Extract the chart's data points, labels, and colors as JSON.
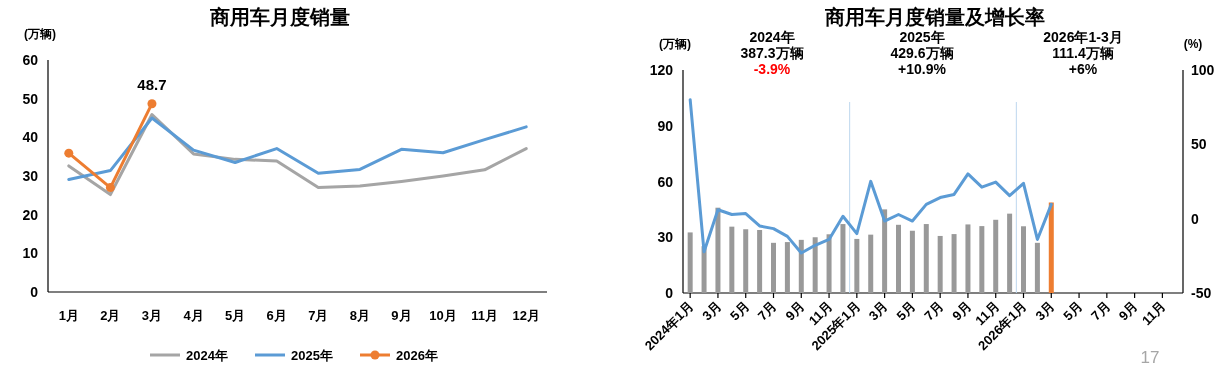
{
  "chart_data": [
    {
      "type": "line",
      "title": "商用车月度销量",
      "ylabel": "(万辆)",
      "categories": [
        "1月",
        "2月",
        "3月",
        "4月",
        "5月",
        "6月",
        "7月",
        "8月",
        "9月",
        "10月",
        "11月",
        "12月"
      ],
      "ylim": [
        0,
        60
      ],
      "yticks": [
        0,
        10,
        20,
        30,
        40,
        50,
        60
      ],
      "grid": false,
      "legend": "bottom",
      "series": [
        {
          "name": "2024年",
          "color": "#a5a5a5",
          "values": [
            32.6,
            25.2,
            45.9,
            35.7,
            34.3,
            33.9,
            27.0,
            27.4,
            28.6,
            30.0,
            31.6,
            37.1
          ]
        },
        {
          "name": "2025年",
          "color": "#5b9bd5",
          "values": [
            29.1,
            31.4,
            45.0,
            36.7,
            33.5,
            37.1,
            30.7,
            31.7,
            36.9,
            36.0,
            39.4,
            42.7
          ]
        },
        {
          "name": "2026年",
          "color": "#ed7d31",
          "marker": "circle",
          "values": [
            35.9,
            27.0,
            48.7,
            null,
            null,
            null,
            null,
            null,
            null,
            null,
            null,
            null
          ],
          "value_labels": [
            null,
            null,
            "48.7",
            null,
            null,
            null,
            null,
            null,
            null,
            null,
            null,
            null
          ]
        }
      ]
    },
    {
      "type": "bar",
      "title": "商用车月度销量及增长率",
      "ylabel": "(万辆)",
      "y2label": "(%)",
      "x": [
        "2024-01",
        "2024-02",
        "2024-03",
        "2024-04",
        "2024-05",
        "2024-06",
        "2024-07",
        "2024-08",
        "2024-09",
        "2024-10",
        "2024-11",
        "2024-12",
        "2025-01",
        "2025-02",
        "2025-03",
        "2025-04",
        "2025-05",
        "2025-06",
        "2025-07",
        "2025-08",
        "2025-09",
        "2025-10",
        "2025-11",
        "2025-12",
        "2026-01",
        "2026-02",
        "2026-03"
      ],
      "xlim": [
        "2023-12-16",
        "2026-12-16"
      ],
      "xticks": [
        {
          "value": "2024-01",
          "label": "2024年1月"
        },
        {
          "value": "2024-03",
          "label": "3月"
        },
        {
          "value": "2024-05",
          "label": "5月"
        },
        {
          "value": "2024-07",
          "label": "7月"
        },
        {
          "value": "2024-09",
          "label": "9月"
        },
        {
          "value": "2024-11",
          "label": "11月"
        },
        {
          "value": "2025-01",
          "label": "2025年1月"
        },
        {
          "value": "2025-03",
          "label": "3月"
        },
        {
          "value": "2025-05",
          "label": "5月"
        },
        {
          "value": "2025-07",
          "label": "7月"
        },
        {
          "value": "2025-09",
          "label": "9月"
        },
        {
          "value": "2025-11",
          "label": "11月"
        },
        {
          "value": "2026-01",
          "label": "2026年1月"
        },
        {
          "value": "2026-03",
          "label": "3月"
        },
        {
          "value": "2026-05",
          "label": "5月"
        },
        {
          "value": "2026-07",
          "label": "7月"
        },
        {
          "value": "2026-09",
          "label": "9月"
        },
        {
          "value": "2026-11",
          "label": "11月"
        }
      ],
      "ylim": [
        0,
        120
      ],
      "yticks": [
        0,
        30,
        60,
        90,
        120
      ],
      "y2lim": [
        -50,
        100
      ],
      "y2ticks": [
        -50,
        0,
        50,
        100
      ],
      "grid": false,
      "legend": false,
      "series": [
        {
          "colors": [
            "#999999",
            "#999999",
            "#999999",
            "#999999",
            "#999999",
            "#999999",
            "#999999",
            "#999999",
            "#999999",
            "#999999",
            "#999999",
            "#999999",
            "#999999",
            "#999999",
            "#999999",
            "#999999",
            "#999999",
            "#999999",
            "#999999",
            "#999999",
            "#999999",
            "#999999",
            "#999999",
            "#999999",
            "#999999",
            "#999999",
            "#ed7d31"
          ],
          "values": [
            32.6,
            25.2,
            45.9,
            35.7,
            34.3,
            33.9,
            27.0,
            27.4,
            28.6,
            30.0,
            31.6,
            37.1,
            29.1,
            31.4,
            45.0,
            36.7,
            33.5,
            37.1,
            30.7,
            31.7,
            36.9,
            36.0,
            39.4,
            42.7,
            35.9,
            27.0,
            48.7
          ]
        },
        {
          "type": "line",
          "axis": "y2",
          "color": "#5b9bd5",
          "values": [
            80,
            -22.3,
            6.0,
            2.8,
            3.4,
            -4.9,
            -6.7,
            -11.9,
            -23.1,
            -17.9,
            -14,
            1.6,
            -10.1,
            25.1,
            -1.6,
            2.8,
            -1.6,
            9.6,
            14.2,
            16.3,
            30.1,
            21.2,
            24.6,
            15.5,
            23.8,
            -14,
            9.6
          ]
        }
      ],
      "ref_lines": [
        {
          "axis": "x",
          "value": "2024-12-16",
          "color": "#bdd7ee"
        },
        {
          "axis": "x",
          "value": "2025-12-16",
          "color": "#bdd7ee"
        }
      ],
      "annotations": [
        "2024年\n387.3万辆\n-3.9%",
        "2025年\n429.6万辆\n+10.9%",
        "2026年1-3月\n111.4万辆\n+6%",
        "17"
      ]
    }
  ]
}
